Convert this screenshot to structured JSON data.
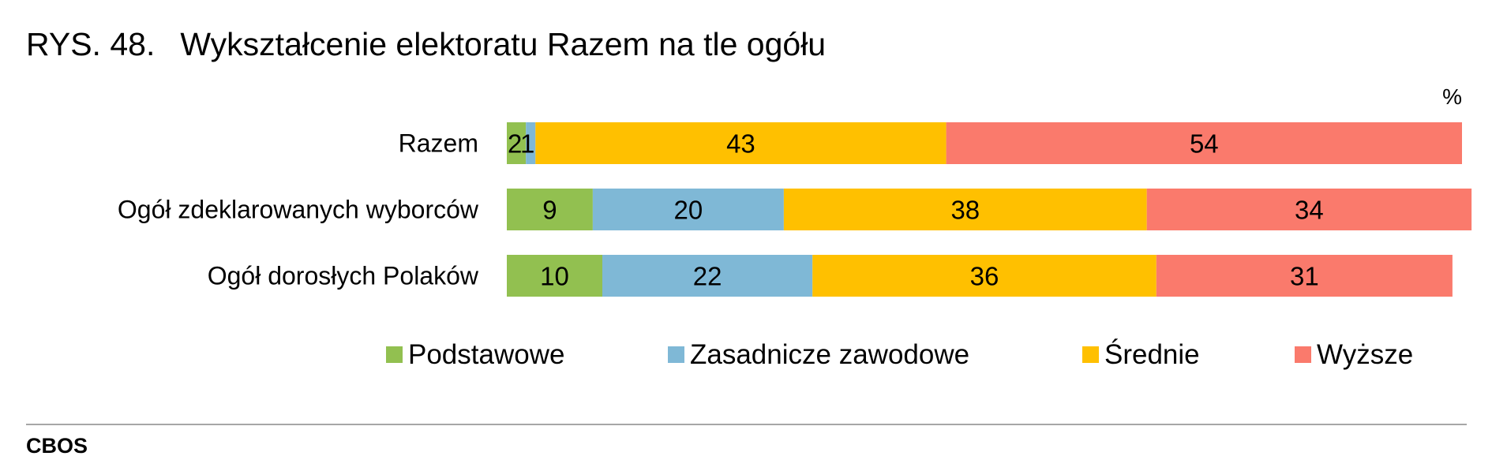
{
  "header": {
    "figure_number": "RYS. 48.",
    "title": "Wykształcenie elektoratu Razem na tle ogółu"
  },
  "footer": {
    "source": "CBOS"
  },
  "chart_data": {
    "type": "bar",
    "orientation": "horizontal",
    "stacked": true,
    "unit_label": "%",
    "xlim": [
      0,
      100
    ],
    "grid": false,
    "legend_position": "bottom",
    "categories": [
      "Razem",
      "Ogół zdeklarowanych wyborców",
      "Ogół dorosłych Polaków"
    ],
    "series": [
      {
        "name": "Podstawowe",
        "color": "#92c050",
        "values": [
          2,
          9,
          10
        ],
        "labels": [
          "2",
          "9",
          "10"
        ]
      },
      {
        "name": "Zasadnicze zawodowe",
        "color": "#7fb8d6",
        "values": [
          1,
          20,
          22
        ],
        "labels": [
          "1",
          "20",
          "22"
        ]
      },
      {
        "name": "Średnie",
        "color": "#ffc000",
        "values": [
          43,
          38,
          36
        ],
        "labels": [
          "43",
          "38",
          "36"
        ]
      },
      {
        "name": "Wyższe",
        "color": "#fa7a6c",
        "values": [
          54,
          34,
          31
        ],
        "labels": [
          "54",
          "34",
          "31"
        ]
      }
    ]
  }
}
